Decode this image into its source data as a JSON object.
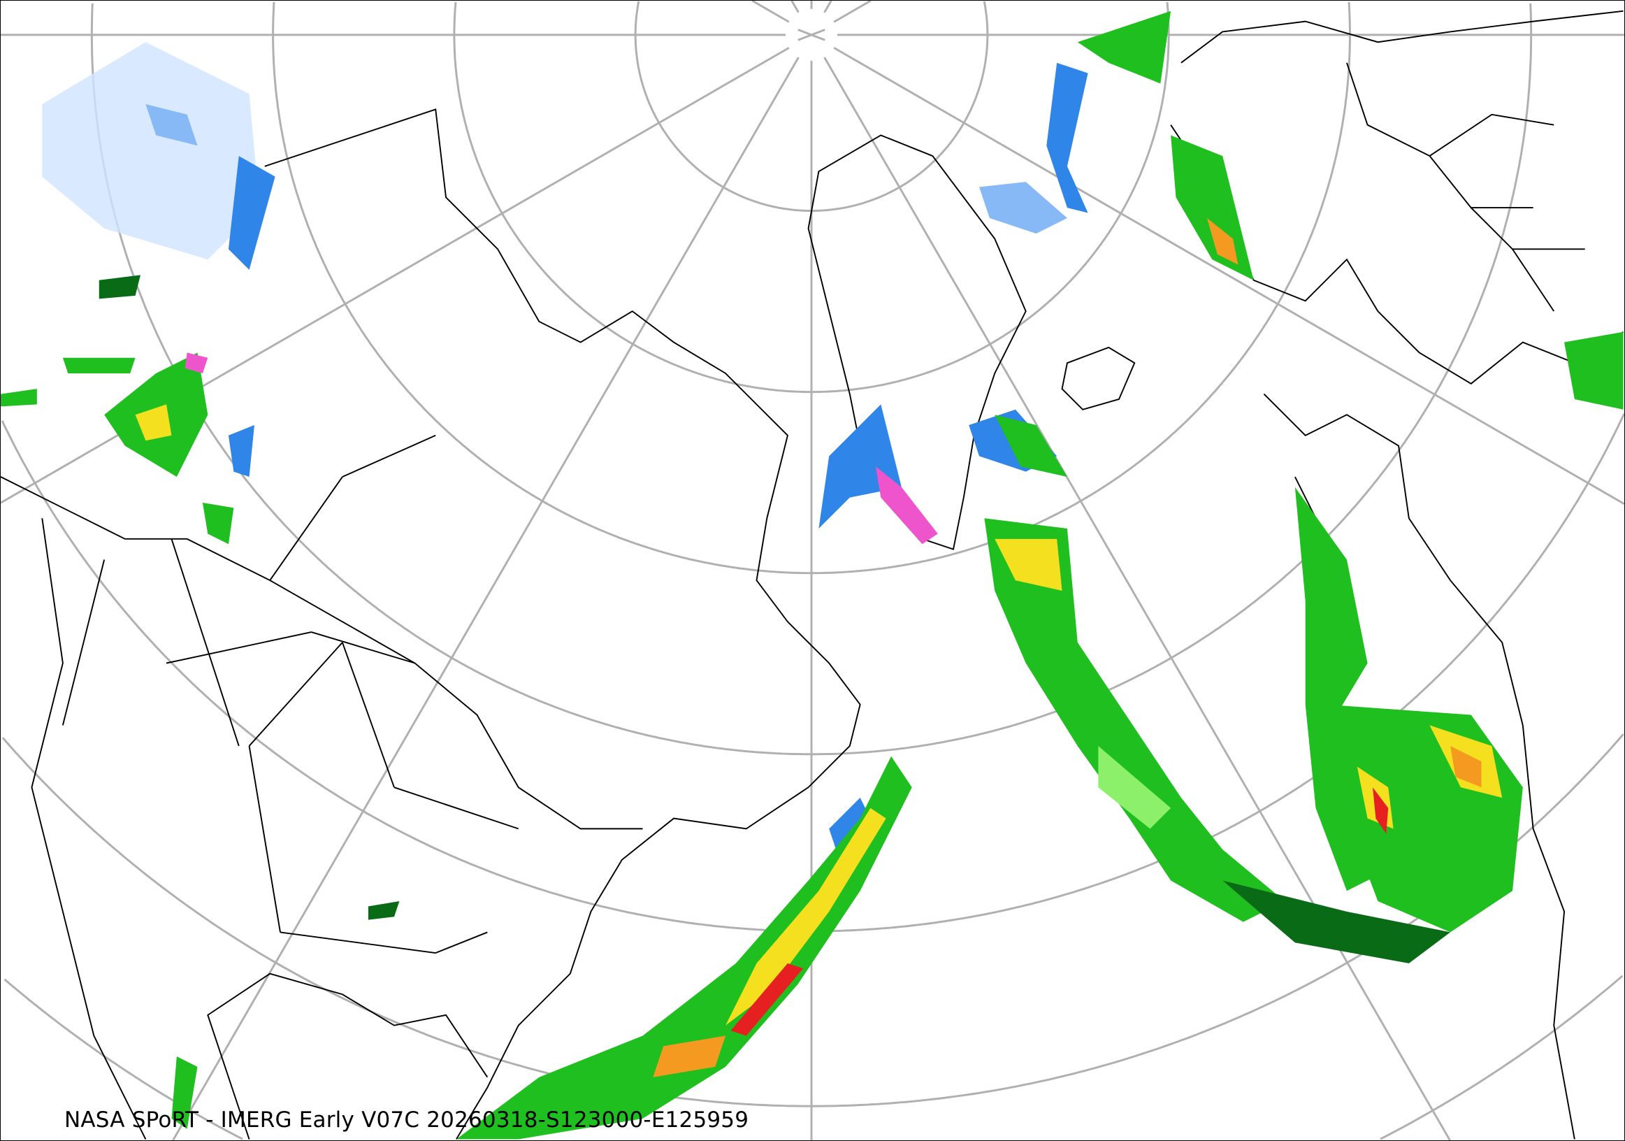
{
  "caption": "NASA SPoRT - IMERG Early V07C 20260318-S123000-E125959",
  "colors": {
    "graticule": "#b0b0b0",
    "boundaries": "#000000",
    "snow_light": "#cfe3ff",
    "snow_medium": "#86b9f5",
    "snow_heavy": "#2f86e8",
    "rain_dark_green": "#0a6b16",
    "rain_green": "#1fbf1f",
    "rain_light_green": "#8cf06a",
    "rain_yellow": "#f5e020",
    "rain_orange": "#f59a20",
    "rain_red": "#e62020",
    "mixed_pink": "#ee55cc"
  }
}
